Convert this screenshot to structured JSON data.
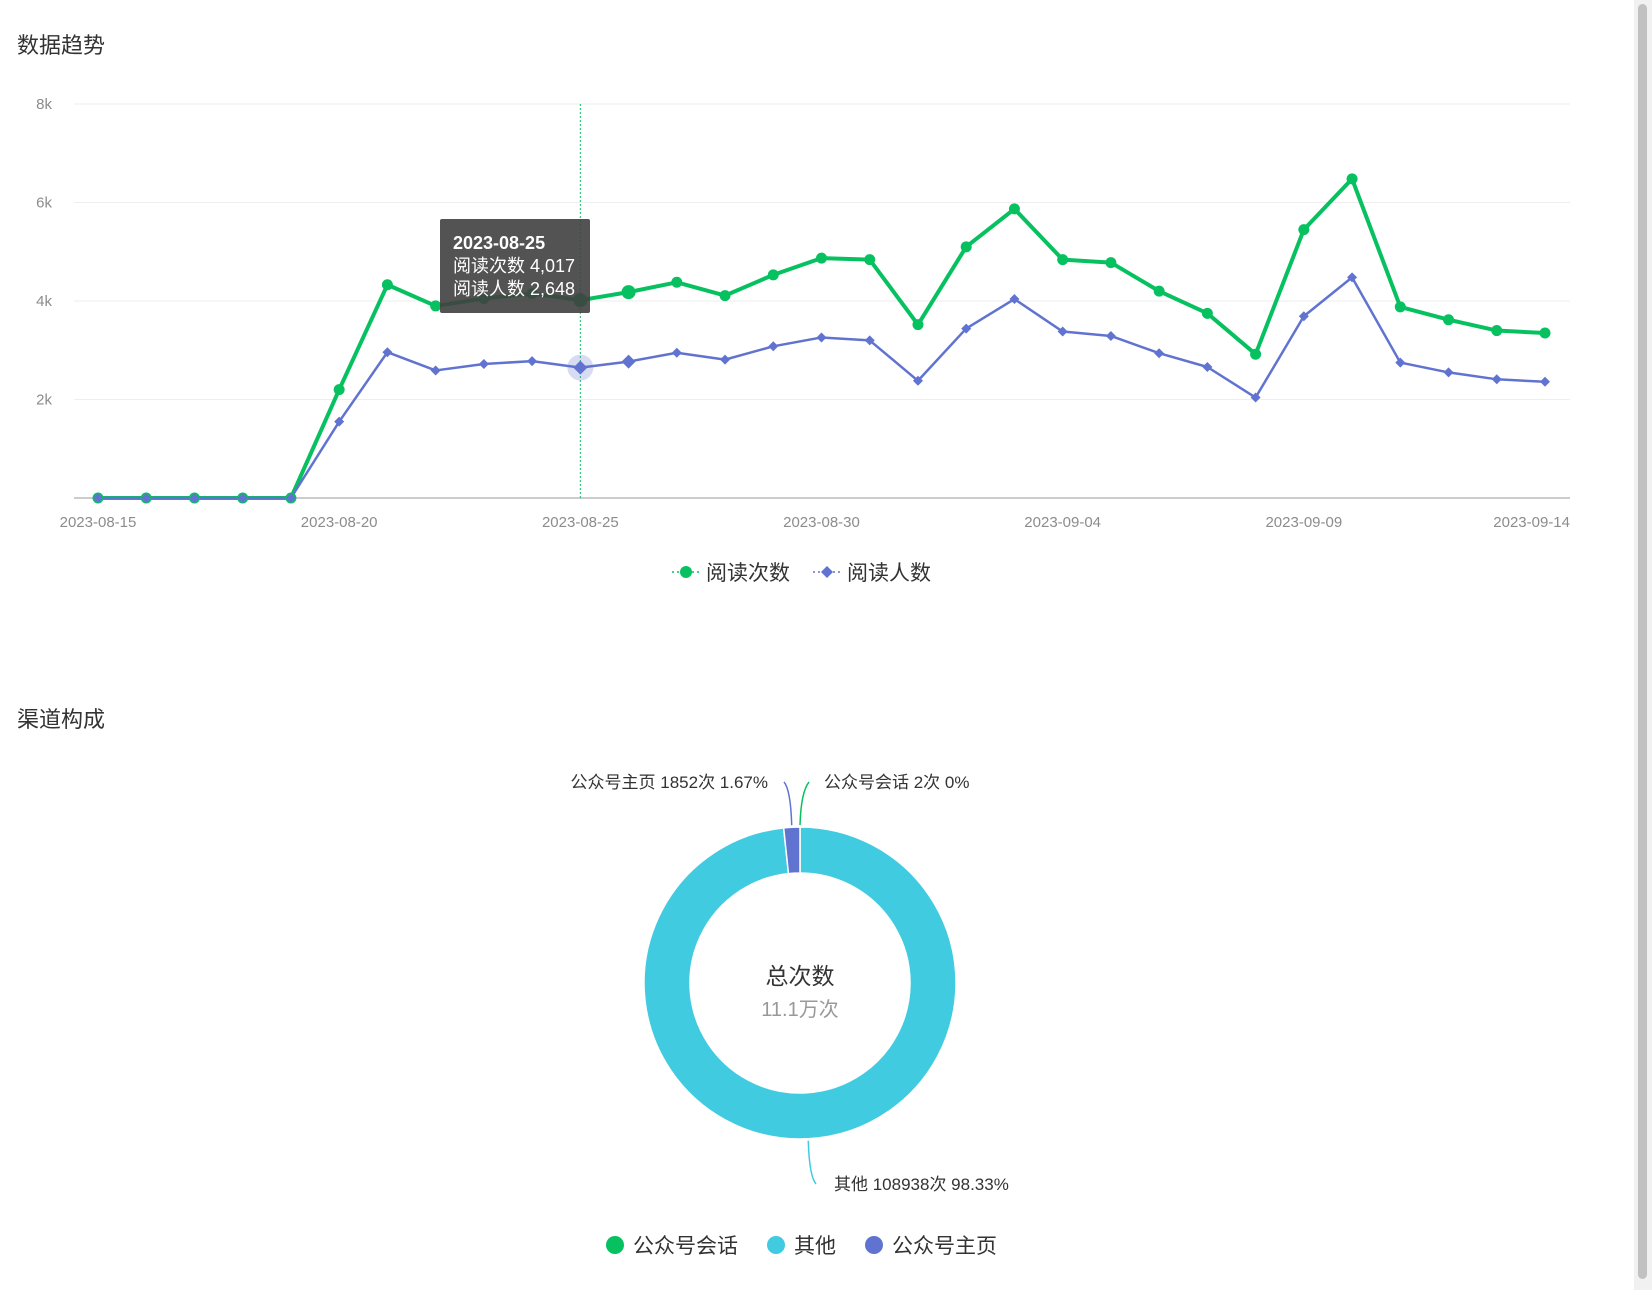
{
  "sections": {
    "trend_title": "数据趋势",
    "channel_title": "渠道构成"
  },
  "chart_data": [
    {
      "type": "line",
      "title": "数据趋势",
      "x": [
        "2023-08-15",
        "2023-08-16",
        "2023-08-17",
        "2023-08-18",
        "2023-08-19",
        "2023-08-20",
        "2023-08-21",
        "2023-08-22",
        "2023-08-23",
        "2023-08-24",
        "2023-08-25",
        "2023-08-26",
        "2023-08-27",
        "2023-08-28",
        "2023-08-29",
        "2023-08-30",
        "2023-08-31",
        "2023-09-01",
        "2023-09-02",
        "2023-09-03",
        "2023-09-04",
        "2023-09-05",
        "2023-09-06",
        "2023-09-07",
        "2023-09-08",
        "2023-09-09",
        "2023-09-10",
        "2023-09-11",
        "2023-09-12",
        "2023-09-13",
        "2023-09-14"
      ],
      "x_tick_labels": [
        "2023-08-15",
        "2023-08-20",
        "2023-08-25",
        "2023-08-30",
        "2023-09-04",
        "2023-09-09",
        "2023-09-14"
      ],
      "y_tick_labels": [
        "8k",
        "6k",
        "4k",
        "2k"
      ],
      "ylim": [
        0,
        8000
      ],
      "grid": true,
      "legend_position": "bottom-center",
      "series": [
        {
          "name": "阅读次数",
          "color": "#07c160",
          "marker": "circle",
          "values": [
            0,
            0,
            0,
            0,
            0,
            2200,
            4330,
            3900,
            4050,
            4150,
            4017,
            4180,
            4380,
            4110,
            4530,
            4870,
            4840,
            3520,
            5100,
            5870,
            4840,
            4780,
            4200,
            3750,
            2920,
            5450,
            6480,
            3880,
            3620,
            3400,
            3350
          ]
        },
        {
          "name": "阅读人数",
          "color": "#6173d0",
          "marker": "diamond",
          "values": [
            0,
            0,
            0,
            0,
            0,
            1550,
            2960,
            2590,
            2720,
            2780,
            2648,
            2770,
            2950,
            2810,
            3080,
            3260,
            3200,
            2380,
            3440,
            4040,
            3380,
            3290,
            2940,
            2660,
            2040,
            3690,
            4480,
            2750,
            2550,
            2410,
            2360
          ]
        }
      ],
      "tooltip": {
        "date": "2023-08-25",
        "lines": [
          "阅读次数 4,017",
          "阅读人数 2,648"
        ]
      }
    },
    {
      "type": "pie",
      "title": "渠道构成",
      "center_title": "总次数",
      "center_value": "11.1万次",
      "legend_position": "bottom-center",
      "slices": [
        {
          "name": "公众号会话",
          "value": 2,
          "percent": 0,
          "color": "#07c160",
          "label": "公众号会话 2次 0%"
        },
        {
          "name": "其他",
          "value": 108938,
          "percent": 98.33,
          "color": "#40cbe0",
          "label": "其他 108938次 98.33%"
        },
        {
          "name": "公众号主页",
          "value": 1852,
          "percent": 1.67,
          "color": "#6173d0",
          "label": "公众号主页 1852次 1.67%"
        }
      ]
    }
  ]
}
